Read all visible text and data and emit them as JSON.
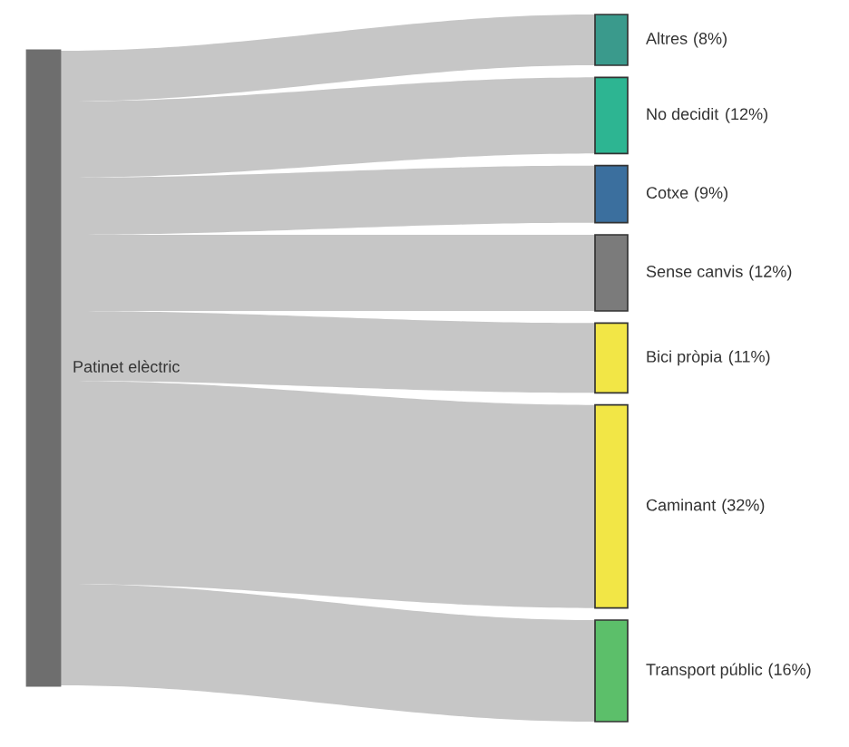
{
  "chart_data": {
    "type": "other",
    "annotations": [
      "Patinet elèctric"
    ],
    "categories": [
      "Altres",
      "No decidit",
      "Cotxe",
      "Sense canvis",
      "Bici pròpia",
      "Caminant",
      "Transport públic"
    ],
    "values": [
      8,
      12,
      9,
      12,
      11,
      32,
      16
    ],
    "value_labels": [
      "(8%)",
      "(12%)",
      "(9%)",
      "(12%)",
      "(11%)",
      "(32%)",
      "(16%)"
    ],
    "colors": [
      "#3a9a8c",
      "#2db592",
      "#3b6f9e",
      "#7b7b7b",
      "#f2e646",
      "#f2e646",
      "#5cbf6a"
    ],
    "color": "#6e6e6e"
  }
}
